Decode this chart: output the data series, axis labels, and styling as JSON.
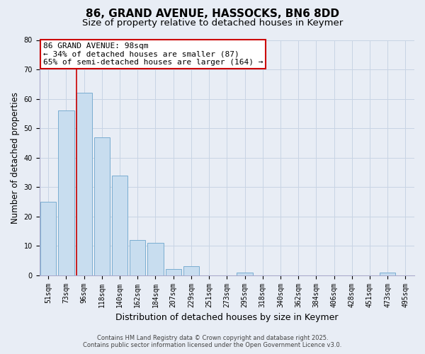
{
  "title": "86, GRAND AVENUE, HASSOCKS, BN6 8DD",
  "subtitle": "Size of property relative to detached houses in Keymer",
  "xlabel": "Distribution of detached houses by size in Keymer",
  "ylabel": "Number of detached properties",
  "categories": [
    "51sqm",
    "73sqm",
    "96sqm",
    "118sqm",
    "140sqm",
    "162sqm",
    "184sqm",
    "207sqm",
    "229sqm",
    "251sqm",
    "273sqm",
    "295sqm",
    "318sqm",
    "340sqm",
    "362sqm",
    "384sqm",
    "406sqm",
    "428sqm",
    "451sqm",
    "473sqm",
    "495sqm"
  ],
  "values": [
    25,
    56,
    62,
    47,
    34,
    12,
    11,
    2,
    3,
    0,
    0,
    1,
    0,
    0,
    0,
    0,
    0,
    0,
    0,
    1,
    0
  ],
  "bar_color": "#c8ddef",
  "bar_edge_color": "#7aadd0",
  "vline_color": "#cc0000",
  "annotation_text": "86 GRAND AVENUE: 98sqm\n← 34% of detached houses are smaller (87)\n65% of semi-detached houses are larger (164) →",
  "annotation_box_facecolor": "#ffffff",
  "annotation_box_edgecolor": "#cc0000",
  "ylim": [
    0,
    80
  ],
  "yticks": [
    0,
    10,
    20,
    30,
    40,
    50,
    60,
    70,
    80
  ],
  "grid_color": "#c8d4e4",
  "background_color": "#e8edf5",
  "footer_line1": "Contains HM Land Registry data © Crown copyright and database right 2025.",
  "footer_line2": "Contains public sector information licensed under the Open Government Licence v3.0.",
  "title_fontsize": 11,
  "subtitle_fontsize": 9.5,
  "annotation_fontsize": 8,
  "xlabel_fontsize": 9,
  "ylabel_fontsize": 8.5,
  "tick_fontsize": 7
}
